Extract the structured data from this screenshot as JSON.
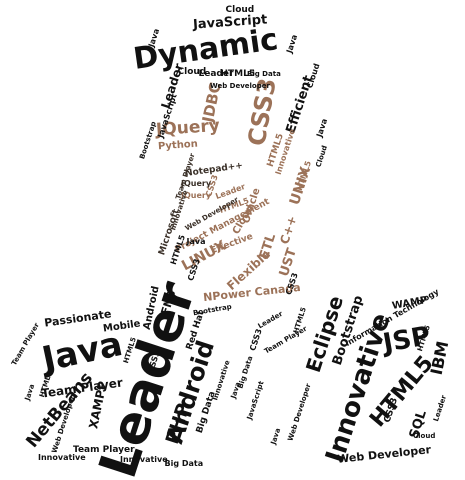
{
  "colors": {
    "dark": "#111111",
    "mid": "#3a3028",
    "brown": "#9c7258",
    "light": "#c8a68c",
    "background": "#ffffff"
  },
  "words": {
    "dynamic": "Dynamic",
    "javascript": "JavaScript",
    "java": "Java",
    "leader": "Leader",
    "innovative": "Innovative",
    "android": "Android",
    "jsp": "JSP",
    "html5": "HTML5",
    "eclipse": "Eclipse",
    "bootstrap": "Bootstrap",
    "netbeans": "NetBeans",
    "php": "PHP",
    "css3": "CSS3",
    "jquery": "JQuery",
    "jdbc": "JDBC",
    "efficient": "Efficient",
    "cloud": "Cloud",
    "python": "Python",
    "unix": "UNIX",
    "oracle": "Oracle",
    "linux": "LINUX",
    "flexible": "Flexible",
    "etl": "ETL",
    "ust": "UST",
    "cpp": "C++",
    "npower_canada": "NPower Canada",
    "passionate": "Passionate",
    "mobile": "Mobile",
    "team_player": "Team Player",
    "xampp": "XAMPP",
    "wamp": "WAMP",
    "sql": "SQL",
    "ibm": "IBM",
    "web_developer": "Web Developer",
    "red_hat": "Red Hat",
    "big_data": "Big Data",
    "information_technology": "Information Technology",
    "project_management": "Project Management",
    "effective": "Effective",
    "notepad": "Notepad++",
    "microsoft": "Microsoft",
    "fnb": "FNB"
  }
}
